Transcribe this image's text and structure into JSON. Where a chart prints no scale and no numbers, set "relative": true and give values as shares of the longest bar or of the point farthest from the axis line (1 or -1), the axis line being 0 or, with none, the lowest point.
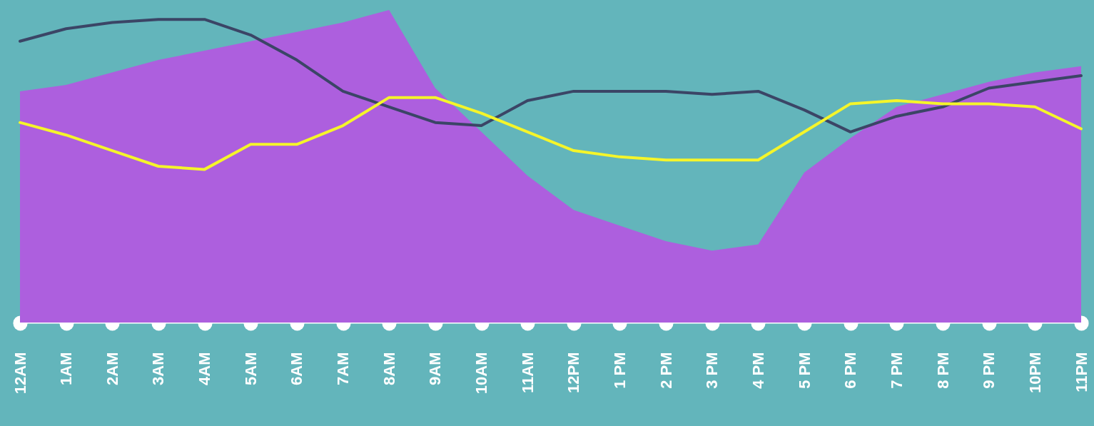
{
  "chart_data": {
    "type": "area",
    "relative": true,
    "categories": [
      "12AM",
      "1AM",
      "2AM",
      "3AM",
      "4AM",
      "5AM",
      "6AM",
      "7AM",
      "8AM",
      "9AM",
      "10AM",
      "11AM",
      "12PM",
      "1 PM",
      "2 PM",
      "3 PM",
      "4 PM",
      "5 PM",
      "6 PM",
      "7 PM",
      "8 PM",
      "9 PM",
      "10PM",
      "11PM"
    ],
    "series": [
      {
        "type": "area",
        "color": "#ad5fde",
        "values": [
          0.74,
          0.76,
          0.8,
          0.84,
          0.87,
          0.9,
          0.93,
          0.96,
          1,
          0.75,
          0.61,
          0.47,
          0.36,
          0.31,
          0.26,
          0.23,
          0.25,
          0.48,
          0.59,
          0.69,
          0.73,
          0.77,
          0.8,
          0.82
        ]
      },
      {
        "type": "line",
        "color": "#3b4566",
        "values": [
          0.9,
          0.94,
          0.96,
          0.97,
          0.97,
          0.92,
          0.84,
          0.74,
          0.69,
          0.64,
          0.63,
          0.71,
          0.74,
          0.74,
          0.74,
          0.73,
          0.74,
          0.68,
          0.61,
          0.66,
          0.69,
          0.75,
          0.77,
          0.79
        ]
      },
      {
        "type": "line",
        "color": "#f5f52a",
        "values": [
          0.64,
          0.6,
          0.55,
          0.5,
          0.49,
          0.57,
          0.57,
          0.63,
          0.72,
          0.72,
          0.67,
          0.61,
          0.55,
          0.53,
          0.52,
          0.52,
          0.52,
          0.61,
          0.7,
          0.71,
          0.7,
          0.7,
          0.69,
          0.62
        ]
      }
    ],
    "line_style": "solid"
  }
}
